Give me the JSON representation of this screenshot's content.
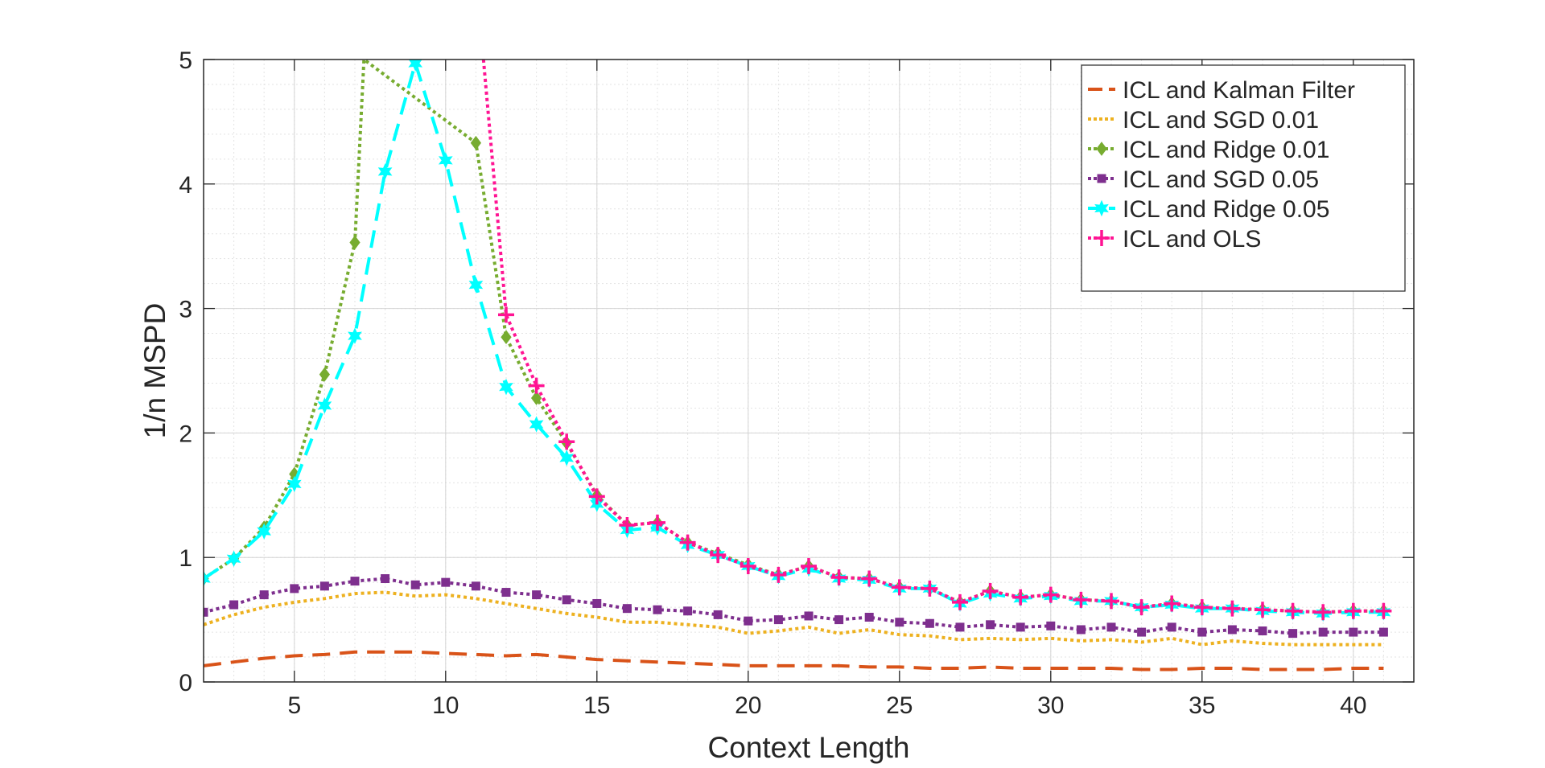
{
  "chart_data": {
    "type": "line",
    "xlabel": "Context Length",
    "ylabel": "1/n MSPD",
    "xlim": [
      2,
      42
    ],
    "ylim": [
      0,
      5
    ],
    "xticks": [
      5,
      10,
      15,
      20,
      25,
      30,
      35,
      40
    ],
    "xtick_labels": [
      "5",
      "10",
      "15",
      "20",
      "25",
      "30",
      "35",
      "40"
    ],
    "yticks": [
      0,
      1,
      2,
      3,
      4,
      5
    ],
    "ytick_labels": [
      "0",
      "1",
      "2",
      "3",
      "4",
      "5"
    ],
    "grid": true,
    "minor_grid": true,
    "legend_position": "top-right",
    "series": [
      {
        "name": "ICL and Kalman Filter",
        "color": "#D95319",
        "line": "dashed",
        "marker": "none",
        "x": [
          2,
          3,
          4,
          5,
          6,
          7,
          8,
          9,
          10,
          11,
          12,
          13,
          14,
          15,
          16,
          17,
          18,
          19,
          20,
          21,
          22,
          23,
          24,
          25,
          26,
          27,
          28,
          29,
          30,
          31,
          32,
          33,
          34,
          35,
          36,
          37,
          38,
          39,
          40,
          41
        ],
        "y": [
          0.13,
          0.16,
          0.19,
          0.21,
          0.22,
          0.24,
          0.24,
          0.24,
          0.23,
          0.22,
          0.21,
          0.22,
          0.2,
          0.18,
          0.17,
          0.16,
          0.15,
          0.14,
          0.13,
          0.13,
          0.13,
          0.13,
          0.12,
          0.12,
          0.11,
          0.11,
          0.12,
          0.11,
          0.11,
          0.11,
          0.11,
          0.1,
          0.1,
          0.11,
          0.11,
          0.1,
          0.1,
          0.1,
          0.11,
          0.11
        ]
      },
      {
        "name": "ICL and SGD 0.01",
        "color": "#EDB120",
        "line": "dotted",
        "marker": "none",
        "x": [
          2,
          3,
          4,
          5,
          6,
          7,
          8,
          9,
          10,
          11,
          12,
          13,
          14,
          15,
          16,
          17,
          18,
          19,
          20,
          21,
          22,
          23,
          24,
          25,
          26,
          27,
          28,
          29,
          30,
          31,
          32,
          33,
          34,
          35,
          36,
          37,
          38,
          39,
          40,
          41
        ],
        "y": [
          0.46,
          0.54,
          0.6,
          0.64,
          0.67,
          0.71,
          0.72,
          0.69,
          0.7,
          0.67,
          0.63,
          0.59,
          0.55,
          0.52,
          0.48,
          0.48,
          0.46,
          0.44,
          0.39,
          0.41,
          0.44,
          0.39,
          0.42,
          0.38,
          0.37,
          0.34,
          0.35,
          0.34,
          0.35,
          0.33,
          0.34,
          0.32,
          0.35,
          0.3,
          0.33,
          0.31,
          0.3,
          0.3,
          0.3,
          0.3
        ]
      },
      {
        "name": "ICL and Ridge 0.01",
        "color": "#77AC30",
        "line": "dotted",
        "marker": "diamond",
        "x": [
          2,
          3,
          4,
          5,
          6,
          7,
          7.3,
          11,
          12,
          13,
          14,
          15,
          16,
          17,
          18,
          19,
          20,
          21,
          22,
          23,
          24,
          25,
          26,
          27,
          28,
          29,
          30,
          31,
          32,
          33,
          34,
          35,
          36,
          37,
          38,
          39,
          40,
          41
        ],
        "y": [
          0.83,
          0.99,
          1.24,
          1.67,
          2.47,
          3.53,
          5.0,
          4.33,
          2.77,
          2.28,
          1.92,
          1.5,
          1.26,
          1.28,
          1.12,
          1.03,
          0.94,
          0.86,
          0.93,
          0.84,
          0.83,
          0.76,
          0.75,
          0.64,
          0.73,
          0.68,
          0.7,
          0.66,
          0.65,
          0.6,
          0.63,
          0.6,
          0.59,
          0.58,
          0.57,
          0.56,
          0.57,
          0.57
        ],
        "marker_x": [
          2,
          3,
          4,
          5,
          6,
          7,
          11,
          12,
          13,
          14,
          15,
          16,
          17,
          18,
          19,
          20,
          21,
          22,
          23,
          24,
          25,
          26,
          27,
          28,
          29,
          30,
          31,
          32,
          33,
          34,
          35,
          36,
          37,
          38,
          39,
          40,
          41
        ]
      },
      {
        "name": "ICL and SGD 0.05",
        "color": "#7E2F8E",
        "line": "dotted",
        "marker": "square",
        "x": [
          2,
          3,
          4,
          5,
          6,
          7,
          8,
          9,
          10,
          11,
          12,
          13,
          14,
          15,
          16,
          17,
          18,
          19,
          20,
          21,
          22,
          23,
          24,
          25,
          26,
          27,
          28,
          29,
          30,
          31,
          32,
          33,
          34,
          35,
          36,
          37,
          38,
          39,
          40,
          41
        ],
        "y": [
          0.56,
          0.62,
          0.7,
          0.75,
          0.77,
          0.81,
          0.83,
          0.78,
          0.8,
          0.77,
          0.72,
          0.7,
          0.66,
          0.63,
          0.59,
          0.58,
          0.57,
          0.54,
          0.49,
          0.5,
          0.53,
          0.5,
          0.52,
          0.48,
          0.47,
          0.44,
          0.46,
          0.44,
          0.45,
          0.42,
          0.44,
          0.4,
          0.44,
          0.4,
          0.42,
          0.41,
          0.39,
          0.4,
          0.4,
          0.4
        ]
      },
      {
        "name": "ICL and Ridge 0.05",
        "color": "#00FFFF",
        "line": "dashed",
        "marker": "hexagram",
        "x": [
          2,
          3,
          4,
          5,
          6,
          7,
          8,
          9,
          10,
          11,
          12,
          13,
          14,
          15,
          16,
          17,
          18,
          19,
          20,
          21,
          22,
          23,
          24,
          25,
          26,
          27,
          28,
          29,
          30,
          31,
          32,
          33,
          34,
          35,
          36,
          37,
          38,
          39,
          40,
          41
        ],
        "y": [
          0.83,
          0.99,
          1.21,
          1.59,
          2.22,
          2.78,
          4.1,
          4.97,
          4.19,
          3.19,
          2.37,
          2.07,
          1.8,
          1.43,
          1.22,
          1.24,
          1.1,
          1.02,
          0.93,
          0.85,
          0.91,
          0.83,
          0.82,
          0.75,
          0.75,
          0.63,
          0.71,
          0.67,
          0.69,
          0.65,
          0.65,
          0.6,
          0.62,
          0.59,
          0.59,
          0.57,
          0.56,
          0.55,
          0.56,
          0.56
        ]
      },
      {
        "name": "ICL and OLS",
        "color": "#FF1493",
        "line": "dotted",
        "marker": "plus",
        "x": [
          11.25,
          12,
          13,
          14,
          15,
          16,
          17,
          18,
          19,
          20,
          21,
          22,
          23,
          24,
          25,
          26,
          27,
          28,
          29,
          30,
          31,
          32,
          33,
          34,
          35,
          36,
          37,
          38,
          39,
          40,
          41
        ],
        "y": [
          5.0,
          2.95,
          2.38,
          1.93,
          1.49,
          1.26,
          1.28,
          1.12,
          1.02,
          0.93,
          0.86,
          0.93,
          0.84,
          0.83,
          0.76,
          0.75,
          0.64,
          0.73,
          0.68,
          0.7,
          0.66,
          0.65,
          0.6,
          0.63,
          0.6,
          0.59,
          0.58,
          0.57,
          0.56,
          0.57,
          0.57
        ],
        "marker_x": [
          12,
          13,
          14,
          15,
          16,
          17,
          18,
          19,
          20,
          21,
          22,
          23,
          24,
          25,
          26,
          27,
          28,
          29,
          30,
          31,
          32,
          33,
          34,
          35,
          36,
          37,
          38,
          39,
          40,
          41
        ]
      }
    ]
  }
}
